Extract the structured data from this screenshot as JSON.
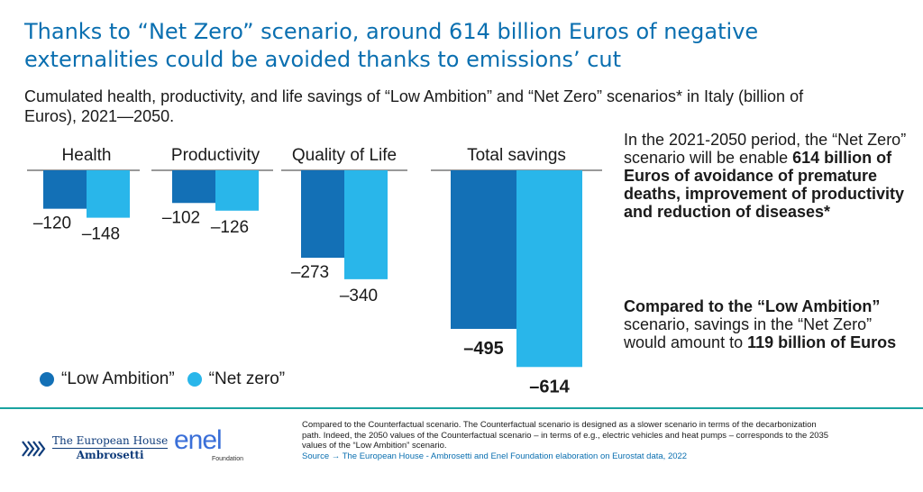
{
  "title": "Thanks to “Net Zero” scenario, around 614 billion Euros of negative externalities could be avoided thanks to emissions’ cut",
  "subtitle": "Cumulated health, productivity, and life savings of “Low Ambition” and “Net Zero” scenarios* in Italy (billion of Euros), 2021—2050.",
  "colors": {
    "low_ambition": "#1370b6",
    "net_zero": "#29b6ea",
    "title": "#0a6fb0",
    "rule": "#1aa3a0"
  },
  "chart_data": {
    "type": "bar",
    "categories": [
      "Health",
      "Productivity",
      "Quality of Life",
      "Total savings"
    ],
    "series": [
      {
        "name": "“Low Ambition”",
        "values": [
          -120,
          -102,
          -273,
          -495
        ]
      },
      {
        "name": "“Net zero”",
        "values": [
          -148,
          -126,
          -340,
          -614
        ]
      }
    ],
    "ylim": [
      -614,
      0
    ],
    "legend_position": "bottom-left",
    "grid": false
  },
  "side_text": {
    "p1_a": "In the 2021-2050 period, the “Net Zero” scenario will be enable ",
    "p1_b": "614 billion of Euros of avoidance of premature deaths, improvement of productivity and reduction of diseases*",
    "p2_a": "Compared to the “Low Ambition”",
    "p2_b": " scenario, savings in the “Net Zero” would amount to ",
    "p2_c": "119 billion of Euros"
  },
  "footer": {
    "teha_line1": "The European House",
    "teha_line2": "Ambrosetti",
    "enel_word": "enel",
    "enel_sub": "Foundation",
    "note": "Compared to the Counterfactual scenario. The Counterfactual scenario is designed as a slower scenario in terms of the decarbonization path. Indeed, the 2050 values of the Counterfactual scenario – in terms of e.g., electric vehicles and heat pumps – corresponds to the 2035 values of the “Low Ambition” scenario.",
    "source": "Source → The European House - Ambrosetti and Enel Foundation elaboration on Eurostat data, 2022"
  }
}
